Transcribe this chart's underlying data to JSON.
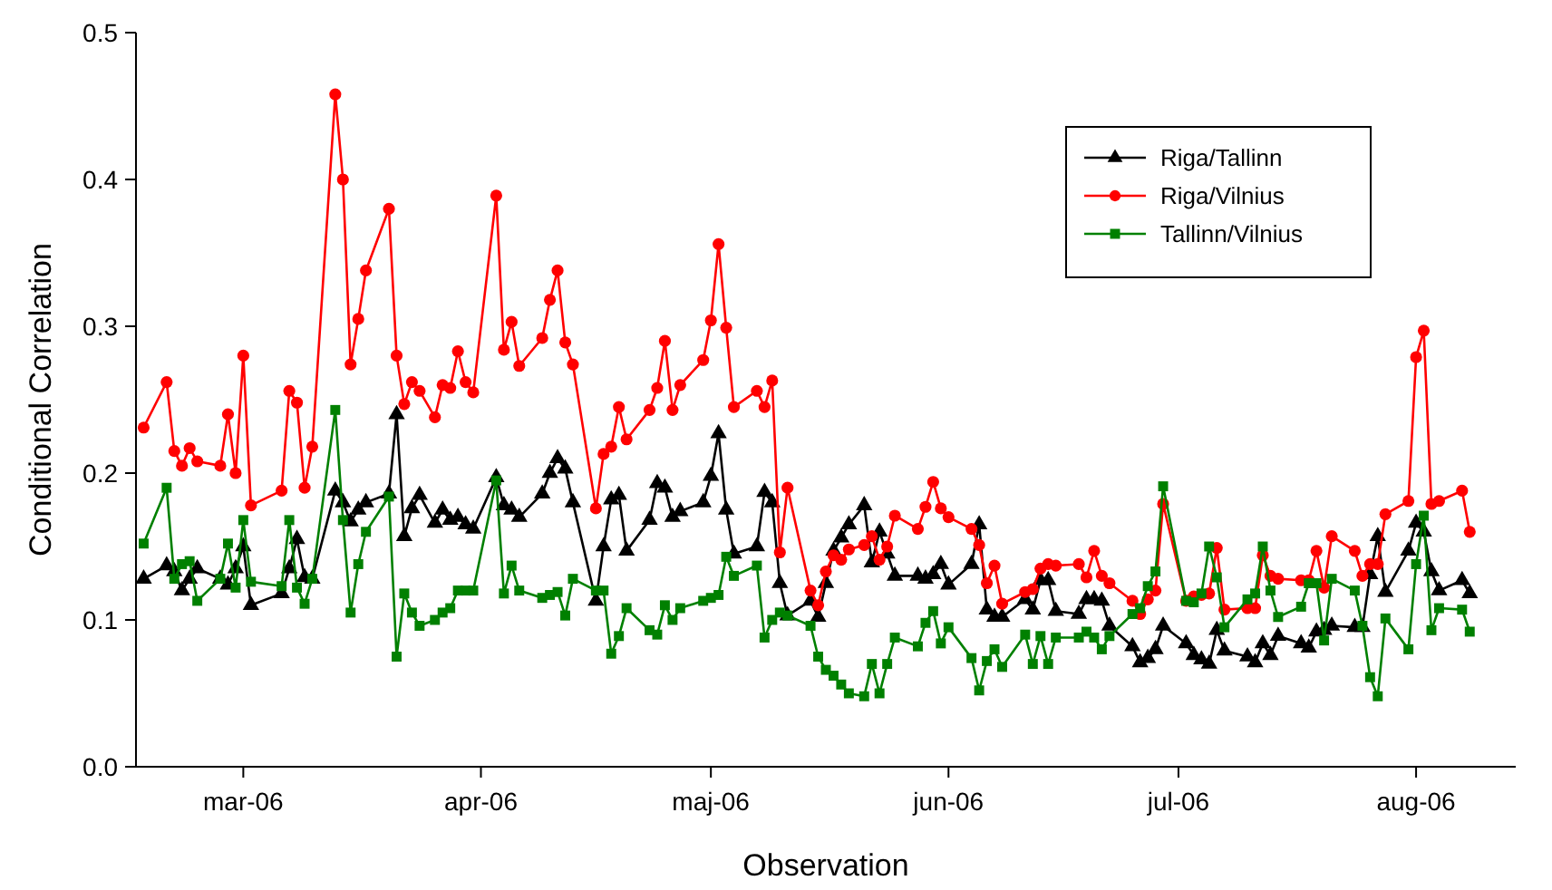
{
  "chart_data": {
    "type": "line",
    "xlabel": "Observation",
    "ylabel": "Conditional Correlation",
    "x": [
      "2006-02-16",
      "2006-02-19",
      "2006-02-20",
      "2006-02-21",
      "2006-02-22",
      "2006-02-23",
      "2006-02-26",
      "2006-02-27",
      "2006-02-28",
      "2006-03-01",
      "2006-03-02",
      "2006-03-06",
      "2006-03-07",
      "2006-03-08",
      "2006-03-09",
      "2006-03-10",
      "2006-03-13",
      "2006-03-14",
      "2006-03-15",
      "2006-03-16",
      "2006-03-17",
      "2006-03-20",
      "2006-03-21",
      "2006-03-22",
      "2006-03-23",
      "2006-03-24",
      "2006-03-26",
      "2006-03-27",
      "2006-03-28",
      "2006-03-29",
      "2006-03-30",
      "2006-03-31",
      "2006-04-03",
      "2006-04-04",
      "2006-04-05",
      "2006-04-06",
      "2006-04-09",
      "2006-04-10",
      "2006-04-11",
      "2006-04-12",
      "2006-04-13",
      "2006-04-16",
      "2006-04-17",
      "2006-04-18",
      "2006-04-19",
      "2006-04-20",
      "2006-04-23",
      "2006-04-24",
      "2006-04-25",
      "2006-04-26",
      "2006-04-27",
      "2006-04-30",
      "2006-05-01",
      "2006-05-02",
      "2006-05-03",
      "2006-05-04",
      "2006-05-07",
      "2006-05-08",
      "2006-05-09",
      "2006-05-10",
      "2006-05-11",
      "2006-05-14",
      "2006-05-15",
      "2006-05-16",
      "2006-05-17",
      "2006-05-18",
      "2006-05-19",
      "2006-05-21",
      "2006-05-22",
      "2006-05-23",
      "2006-05-24",
      "2006-05-25",
      "2006-05-28",
      "2006-05-29",
      "2006-05-30",
      "2006-05-31",
      "2006-06-01",
      "2006-06-04",
      "2006-06-05",
      "2006-06-06",
      "2006-06-07",
      "2006-06-08",
      "2006-06-11",
      "2006-06-12",
      "2006-06-13",
      "2006-06-14",
      "2006-06-15",
      "2006-06-18",
      "2006-06-19",
      "2006-06-20",
      "2006-06-21",
      "2006-06-22",
      "2006-06-25",
      "2006-06-26",
      "2006-06-27",
      "2006-06-28",
      "2006-06-29",
      "2006-07-02",
      "2006-07-03",
      "2006-07-04",
      "2006-07-05",
      "2006-07-06",
      "2006-07-07",
      "2006-07-10",
      "2006-07-11",
      "2006-07-12",
      "2006-07-13",
      "2006-07-14",
      "2006-07-17",
      "2006-07-18",
      "2006-07-19",
      "2006-07-20",
      "2006-07-21",
      "2006-07-24",
      "2006-07-25",
      "2006-07-26",
      "2006-07-27",
      "2006-07-28",
      "2006-07-31",
      "2006-08-01",
      "2006-08-02",
      "2006-08-03",
      "2006-08-04",
      "2006-08-07",
      "2006-08-08"
    ],
    "series": [
      {
        "name": "Riga/Tallinn",
        "color": "#000000",
        "marker": "triangle",
        "values": [
          0.128,
          0.137,
          0.133,
          0.12,
          0.128,
          0.135,
          0.128,
          0.124,
          0.135,
          0.15,
          0.11,
          0.118,
          0.135,
          0.155,
          0.129,
          0.128,
          0.188,
          0.18,
          0.167,
          0.175,
          0.18,
          0.186,
          0.24,
          0.157,
          0.176,
          0.185,
          0.166,
          0.175,
          0.168,
          0.17,
          0.165,
          0.162,
          0.197,
          0.178,
          0.175,
          0.17,
          0.186,
          0.2,
          0.21,
          0.203,
          0.18,
          0.113,
          0.15,
          0.182,
          0.185,
          0.147,
          0.168,
          0.193,
          0.19,
          0.17,
          0.174,
          0.18,
          0.198,
          0.227,
          0.175,
          0.145,
          0.15,
          0.187,
          0.18,
          0.125,
          0.103,
          0.113,
          0.102,
          0.125,
          0.147,
          0.156,
          0.165,
          0.178,
          0.139,
          0.16,
          0.145,
          0.13,
          0.13,
          0.128,
          0.131,
          0.138,
          0.124,
          0.138,
          0.165,
          0.107,
          0.102,
          0.102,
          0.114,
          0.107,
          0.127,
          0.127,
          0.106,
          0.104,
          0.114,
          0.114,
          0.113,
          0.096,
          0.082,
          0.071,
          0.074,
          0.08,
          0.096,
          0.084,
          0.076,
          0.073,
          0.07,
          0.093,
          0.079,
          0.075,
          0.071,
          0.084,
          0.076,
          0.089,
          0.084,
          0.081,
          0.092,
          0.093,
          0.096,
          0.095,
          0.095,
          0.131,
          0.157,
          0.119,
          0.147,
          0.166,
          0.16,
          0.133,
          0.12,
          0.127,
          0.118
        ]
      },
      {
        "name": "Riga/Vilnius",
        "color": "#ff0000",
        "marker": "circle",
        "values": [
          0.231,
          0.262,
          0.215,
          0.205,
          0.217,
          0.208,
          0.205,
          0.24,
          0.2,
          0.28,
          0.178,
          0.188,
          0.256,
          0.248,
          0.19,
          0.218,
          0.458,
          0.4,
          0.274,
          0.305,
          0.338,
          0.38,
          0.28,
          0.247,
          0.262,
          0.256,
          0.238,
          0.26,
          0.258,
          0.283,
          0.262,
          0.255,
          0.389,
          0.284,
          0.303,
          0.273,
          0.292,
          0.318,
          0.338,
          0.289,
          0.274,
          0.176,
          0.213,
          0.218,
          0.245,
          0.223,
          0.243,
          0.258,
          0.29,
          0.243,
          0.26,
          0.277,
          0.304,
          0.356,
          0.299,
          0.245,
          0.256,
          0.245,
          0.263,
          0.146,
          0.19,
          0.12,
          0.11,
          0.133,
          0.144,
          0.141,
          0.148,
          0.151,
          0.157,
          0.141,
          0.15,
          0.171,
          0.162,
          0.177,
          0.194,
          0.176,
          0.17,
          0.162,
          0.151,
          0.125,
          0.137,
          0.111,
          0.119,
          0.121,
          0.135,
          0.138,
          0.137,
          0.138,
          0.129,
          0.147,
          0.13,
          0.125,
          0.113,
          0.104,
          0.114,
          0.12,
          0.179,
          0.113,
          0.116,
          0.117,
          0.118,
          0.149,
          0.107,
          0.108,
          0.108,
          0.144,
          0.13,
          0.128,
          0.127,
          0.127,
          0.147,
          0.122,
          0.157,
          0.147,
          0.13,
          0.138,
          0.138,
          0.172,
          0.181,
          0.279,
          0.297,
          0.179,
          0.181,
          0.188,
          0.16
        ]
      },
      {
        "name": "Tallinn/Vilnius",
        "color": "#008000",
        "marker": "square",
        "values": [
          0.152,
          0.19,
          0.128,
          0.138,
          0.14,
          0.113,
          0.128,
          0.152,
          0.122,
          0.168,
          0.126,
          0.123,
          0.168,
          0.122,
          0.111,
          0.128,
          0.243,
          0.168,
          0.105,
          0.138,
          0.16,
          0.184,
          0.075,
          0.118,
          0.105,
          0.096,
          0.1,
          0.105,
          0.108,
          0.12,
          0.12,
          0.12,
          0.195,
          0.118,
          0.137,
          0.12,
          0.115,
          0.117,
          0.119,
          0.103,
          0.128,
          0.12,
          0.12,
          0.077,
          0.089,
          0.108,
          0.093,
          0.09,
          0.11,
          0.1,
          0.108,
          0.113,
          0.115,
          0.117,
          0.143,
          0.13,
          0.137,
          0.088,
          0.1,
          0.105,
          0.103,
          0.096,
          0.075,
          0.066,
          0.062,
          0.056,
          0.05,
          0.048,
          0.07,
          0.05,
          0.07,
          0.088,
          0.082,
          0.098,
          0.106,
          0.084,
          0.095,
          0.074,
          0.052,
          0.072,
          0.08,
          0.068,
          0.09,
          0.07,
          0.089,
          0.07,
          0.088,
          0.088,
          0.092,
          0.088,
          0.08,
          0.089,
          0.104,
          0.108,
          0.123,
          0.133,
          0.191,
          0.113,
          0.112,
          0.118,
          0.15,
          0.129,
          0.095,
          0.114,
          0.118,
          0.15,
          0.12,
          0.102,
          0.109,
          0.125,
          0.125,
          0.086,
          0.128,
          0.12,
          0.096,
          0.061,
          0.048,
          0.101,
          0.08,
          0.138,
          0.171,
          0.093,
          0.108,
          0.107,
          0.092
        ]
      }
    ],
    "xlim": [
      "2006-02-15",
      "2006-08-14"
    ],
    "xticks": [
      {
        "value": "2006-03-01",
        "label": "mar-06"
      },
      {
        "value": "2006-04-01",
        "label": "apr-06"
      },
      {
        "value": "2006-05-01",
        "label": "maj-06"
      },
      {
        "value": "2006-06-01",
        "label": "jun-06"
      },
      {
        "value": "2006-07-01",
        "label": "jul-06"
      },
      {
        "value": "2006-08-01",
        "label": "aug-06"
      }
    ],
    "ylim": [
      0,
      0.5
    ],
    "yticks": [
      {
        "value": 0,
        "label": "0.0"
      },
      {
        "value": 0.1,
        "label": "0.1"
      },
      {
        "value": 0.2,
        "label": "0.2"
      },
      {
        "value": 0.3,
        "label": "0.3"
      },
      {
        "value": 0.4,
        "label": "0.4"
      },
      {
        "value": 0.5,
        "label": "0.5"
      }
    ],
    "grid": false,
    "legend": "top right",
    "line_style": "solid"
  }
}
